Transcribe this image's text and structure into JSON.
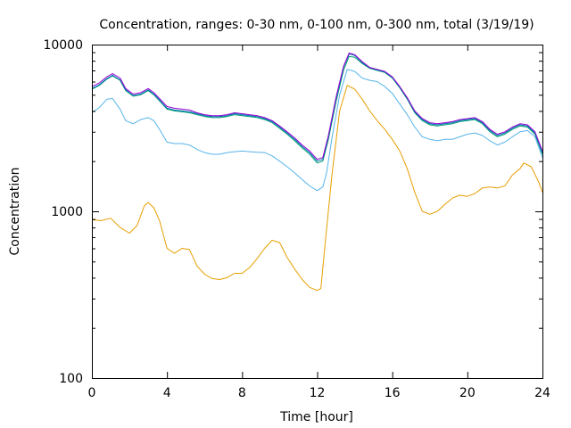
{
  "chart_data": {
    "type": "line",
    "title": "Concentration, ranges: 0-30 nm, 0-100 nm, 0-300 nm, total (3/19/19)",
    "xlabel": "Time [hour]",
    "ylabel": "Concentration",
    "xlim": [
      0,
      24
    ],
    "ylim": [
      100,
      10000
    ],
    "yscale": "log",
    "grid": false,
    "legend": "none",
    "xticks": [
      0,
      4,
      8,
      12,
      16,
      20,
      24
    ],
    "xtick_labels": [
      "0",
      "4",
      "8",
      "12",
      "16",
      "20",
      "24"
    ],
    "yticks": [
      100,
      1000,
      10000
    ],
    "ytick_labels": [
      "100",
      "1000",
      "10000"
    ],
    "series": [
      {
        "color": "#e69f00",
        "points": [
          [
            0,
            890
          ],
          [
            0.5,
            880
          ],
          [
            1,
            910
          ],
          [
            1.5,
            800
          ],
          [
            2,
            740
          ],
          [
            2.4,
            820
          ],
          [
            2.8,
            1080
          ],
          [
            3,
            1130
          ],
          [
            3.3,
            1050
          ],
          [
            3.6,
            880
          ],
          [
            4,
            600
          ],
          [
            4.4,
            560
          ],
          [
            4.8,
            600
          ],
          [
            5.2,
            590
          ],
          [
            5.6,
            470
          ],
          [
            6,
            420
          ],
          [
            6.4,
            395
          ],
          [
            6.8,
            390
          ],
          [
            7.2,
            400
          ],
          [
            7.6,
            425
          ],
          [
            8,
            425
          ],
          [
            8.4,
            460
          ],
          [
            8.8,
            520
          ],
          [
            9.2,
            600
          ],
          [
            9.6,
            670
          ],
          [
            10,
            650
          ],
          [
            10.4,
            530
          ],
          [
            10.8,
            450
          ],
          [
            11.2,
            390
          ],
          [
            11.6,
            350
          ],
          [
            12,
            335
          ],
          [
            12.2,
            345
          ],
          [
            12.4,
            600
          ],
          [
            12.8,
            1700
          ],
          [
            13.2,
            4000
          ],
          [
            13.6,
            5700
          ],
          [
            14,
            5400
          ],
          [
            14.4,
            4700
          ],
          [
            14.8,
            4000
          ],
          [
            15.2,
            3500
          ],
          [
            15.6,
            3100
          ],
          [
            16,
            2700
          ],
          [
            16.4,
            2300
          ],
          [
            16.8,
            1800
          ],
          [
            17.2,
            1300
          ],
          [
            17.6,
            1000
          ],
          [
            18,
            960
          ],
          [
            18.4,
            1000
          ],
          [
            18.8,
            1100
          ],
          [
            19.2,
            1200
          ],
          [
            19.6,
            1250
          ],
          [
            20,
            1230
          ],
          [
            20.4,
            1280
          ],
          [
            20.8,
            1380
          ],
          [
            21.2,
            1400
          ],
          [
            21.6,
            1380
          ],
          [
            22,
            1420
          ],
          [
            22.4,
            1650
          ],
          [
            22.8,
            1800
          ],
          [
            23,
            1950
          ],
          [
            23.4,
            1850
          ],
          [
            23.8,
            1500
          ],
          [
            24,
            1300
          ]
        ]
      },
      {
        "color": "#56b4e9",
        "points": [
          [
            0,
            3900
          ],
          [
            0.4,
            4200
          ],
          [
            0.8,
            4700
          ],
          [
            1.1,
            4750
          ],
          [
            1.5,
            4100
          ],
          [
            1.8,
            3500
          ],
          [
            2.2,
            3350
          ],
          [
            2.6,
            3550
          ],
          [
            3,
            3650
          ],
          [
            3.3,
            3500
          ],
          [
            3.6,
            3100
          ],
          [
            4,
            2600
          ],
          [
            4.4,
            2550
          ],
          [
            4.8,
            2550
          ],
          [
            5.2,
            2500
          ],
          [
            5.6,
            2350
          ],
          [
            6,
            2250
          ],
          [
            6.4,
            2200
          ],
          [
            6.8,
            2200
          ],
          [
            7.2,
            2250
          ],
          [
            7.6,
            2280
          ],
          [
            8,
            2300
          ],
          [
            8.4,
            2280
          ],
          [
            8.8,
            2260
          ],
          [
            9.2,
            2250
          ],
          [
            9.6,
            2150
          ],
          [
            10,
            2000
          ],
          [
            10.4,
            1850
          ],
          [
            10.8,
            1700
          ],
          [
            11.2,
            1550
          ],
          [
            11.6,
            1420
          ],
          [
            12,
            1330
          ],
          [
            12.3,
            1400
          ],
          [
            12.5,
            1700
          ],
          [
            12.8,
            2800
          ],
          [
            13.2,
            5000
          ],
          [
            13.6,
            7100
          ],
          [
            14,
            6900
          ],
          [
            14.4,
            6300
          ],
          [
            14.8,
            6100
          ],
          [
            15.2,
            6000
          ],
          [
            15.6,
            5600
          ],
          [
            16,
            5100
          ],
          [
            16.4,
            4400
          ],
          [
            16.8,
            3800
          ],
          [
            17.2,
            3200
          ],
          [
            17.6,
            2800
          ],
          [
            18,
            2700
          ],
          [
            18.4,
            2650
          ],
          [
            18.8,
            2700
          ],
          [
            19.2,
            2700
          ],
          [
            19.6,
            2800
          ],
          [
            20,
            2900
          ],
          [
            20.4,
            2950
          ],
          [
            20.8,
            2850
          ],
          [
            21.2,
            2650
          ],
          [
            21.6,
            2500
          ],
          [
            22,
            2600
          ],
          [
            22.4,
            2800
          ],
          [
            22.8,
            3000
          ],
          [
            23.2,
            3050
          ],
          [
            23.6,
            2800
          ],
          [
            24,
            2100
          ]
        ]
      },
      {
        "color": "#009e73",
        "points": [
          [
            0,
            5400
          ],
          [
            0.4,
            5700
          ],
          [
            0.8,
            6200
          ],
          [
            1.1,
            6500
          ],
          [
            1.5,
            6100
          ],
          [
            1.8,
            5300
          ],
          [
            2.2,
            4900
          ],
          [
            2.6,
            5000
          ],
          [
            3,
            5300
          ],
          [
            3.3,
            5000
          ],
          [
            3.6,
            4600
          ],
          [
            4,
            4100
          ],
          [
            4.4,
            4000
          ],
          [
            4.8,
            3950
          ],
          [
            5.2,
            3900
          ],
          [
            5.6,
            3800
          ],
          [
            6,
            3700
          ],
          [
            6.4,
            3650
          ],
          [
            6.8,
            3650
          ],
          [
            7.2,
            3700
          ],
          [
            7.6,
            3800
          ],
          [
            8,
            3750
          ],
          [
            8.4,
            3700
          ],
          [
            8.8,
            3650
          ],
          [
            9.2,
            3550
          ],
          [
            9.6,
            3400
          ],
          [
            10,
            3150
          ],
          [
            10.4,
            2900
          ],
          [
            10.8,
            2650
          ],
          [
            11.2,
            2400
          ],
          [
            11.6,
            2200
          ],
          [
            12,
            1950
          ],
          [
            12.3,
            2000
          ],
          [
            12.6,
            2700
          ],
          [
            13,
            4500
          ],
          [
            13.4,
            7000
          ],
          [
            13.7,
            8500
          ],
          [
            14,
            8400
          ],
          [
            14.4,
            7700
          ],
          [
            14.8,
            7200
          ],
          [
            15.2,
            7000
          ],
          [
            15.6,
            6800
          ],
          [
            16,
            6300
          ],
          [
            16.4,
            5500
          ],
          [
            16.8,
            4700
          ],
          [
            17.2,
            3900
          ],
          [
            17.6,
            3500
          ],
          [
            18,
            3300
          ],
          [
            18.4,
            3250
          ],
          [
            18.8,
            3300
          ],
          [
            19.2,
            3350
          ],
          [
            19.6,
            3450
          ],
          [
            20,
            3500
          ],
          [
            20.4,
            3550
          ],
          [
            20.8,
            3350
          ],
          [
            21.2,
            3000
          ],
          [
            21.6,
            2800
          ],
          [
            22,
            2900
          ],
          [
            22.4,
            3100
          ],
          [
            22.8,
            3250
          ],
          [
            23.2,
            3200
          ],
          [
            23.6,
            2900
          ],
          [
            24,
            2200
          ]
        ]
      },
      {
        "color": "#0072b2",
        "points": [
          [
            0,
            5450
          ],
          [
            0.4,
            5750
          ],
          [
            0.8,
            6250
          ],
          [
            1.1,
            6550
          ],
          [
            1.5,
            6150
          ],
          [
            1.8,
            5350
          ],
          [
            2.2,
            4950
          ],
          [
            2.6,
            5050
          ],
          [
            3,
            5350
          ],
          [
            3.3,
            5050
          ],
          [
            3.6,
            4650
          ],
          [
            4,
            4150
          ],
          [
            4.4,
            4050
          ],
          [
            4.8,
            4000
          ],
          [
            5.2,
            3950
          ],
          [
            5.6,
            3850
          ],
          [
            6,
            3750
          ],
          [
            6.4,
            3700
          ],
          [
            6.8,
            3700
          ],
          [
            7.2,
            3750
          ],
          [
            7.6,
            3850
          ],
          [
            8,
            3800
          ],
          [
            8.4,
            3750
          ],
          [
            8.8,
            3700
          ],
          [
            9.2,
            3600
          ],
          [
            9.6,
            3450
          ],
          [
            10,
            3200
          ],
          [
            10.4,
            2950
          ],
          [
            10.8,
            2700
          ],
          [
            11.2,
            2450
          ],
          [
            11.6,
            2250
          ],
          [
            12,
            2000
          ],
          [
            12.3,
            2050
          ],
          [
            12.6,
            2800
          ],
          [
            13,
            4700
          ],
          [
            13.4,
            7300
          ],
          [
            13.7,
            8800
          ],
          [
            14,
            8600
          ],
          [
            14.4,
            7800
          ],
          [
            14.8,
            7250
          ],
          [
            15.2,
            7050
          ],
          [
            15.6,
            6850
          ],
          [
            16,
            6350
          ],
          [
            16.4,
            5550
          ],
          [
            16.8,
            4750
          ],
          [
            17.2,
            3950
          ],
          [
            17.6,
            3550
          ],
          [
            18,
            3350
          ],
          [
            18.4,
            3300
          ],
          [
            18.8,
            3350
          ],
          [
            19.2,
            3400
          ],
          [
            19.6,
            3500
          ],
          [
            20,
            3550
          ],
          [
            20.4,
            3600
          ],
          [
            20.8,
            3400
          ],
          [
            21.2,
            3050
          ],
          [
            21.6,
            2850
          ],
          [
            22,
            2950
          ],
          [
            22.4,
            3150
          ],
          [
            22.8,
            3300
          ],
          [
            23.2,
            3250
          ],
          [
            23.6,
            2950
          ],
          [
            24,
            2250
          ]
        ]
      },
      {
        "color": "#9400d3",
        "points": [
          [
            0,
            5600
          ],
          [
            0.4,
            5900
          ],
          [
            0.8,
            6400
          ],
          [
            1.1,
            6700
          ],
          [
            1.5,
            6300
          ],
          [
            1.8,
            5450
          ],
          [
            2.2,
            5050
          ],
          [
            2.6,
            5150
          ],
          [
            3,
            5450
          ],
          [
            3.3,
            5150
          ],
          [
            3.6,
            4750
          ],
          [
            4,
            4250
          ],
          [
            4.4,
            4150
          ],
          [
            4.8,
            4100
          ],
          [
            5.2,
            4050
          ],
          [
            5.6,
            3900
          ],
          [
            6,
            3800
          ],
          [
            6.4,
            3750
          ],
          [
            6.8,
            3750
          ],
          [
            7.2,
            3800
          ],
          [
            7.6,
            3900
          ],
          [
            8,
            3850
          ],
          [
            8.4,
            3800
          ],
          [
            8.8,
            3750
          ],
          [
            9.2,
            3650
          ],
          [
            9.6,
            3500
          ],
          [
            10,
            3250
          ],
          [
            10.4,
            3000
          ],
          [
            10.8,
            2750
          ],
          [
            11.2,
            2500
          ],
          [
            11.6,
            2300
          ],
          [
            12,
            2050
          ],
          [
            12.3,
            2100
          ],
          [
            12.6,
            2850
          ],
          [
            13,
            4800
          ],
          [
            13.4,
            7400
          ],
          [
            13.7,
            8900
          ],
          [
            14,
            8700
          ],
          [
            14.4,
            7900
          ],
          [
            14.8,
            7300
          ],
          [
            15.2,
            7100
          ],
          [
            15.6,
            6900
          ],
          [
            16,
            6400
          ],
          [
            16.4,
            5600
          ],
          [
            16.8,
            4800
          ],
          [
            17.2,
            4000
          ],
          [
            17.6,
            3600
          ],
          [
            18,
            3400
          ],
          [
            18.4,
            3350
          ],
          [
            18.8,
            3400
          ],
          [
            19.2,
            3450
          ],
          [
            19.6,
            3550
          ],
          [
            20,
            3600
          ],
          [
            20.4,
            3650
          ],
          [
            20.8,
            3450
          ],
          [
            21.2,
            3100
          ],
          [
            21.6,
            2900
          ],
          [
            22,
            3000
          ],
          [
            22.4,
            3200
          ],
          [
            22.8,
            3350
          ],
          [
            23.2,
            3300
          ],
          [
            23.6,
            3000
          ],
          [
            24,
            2300
          ]
        ]
      }
    ]
  }
}
